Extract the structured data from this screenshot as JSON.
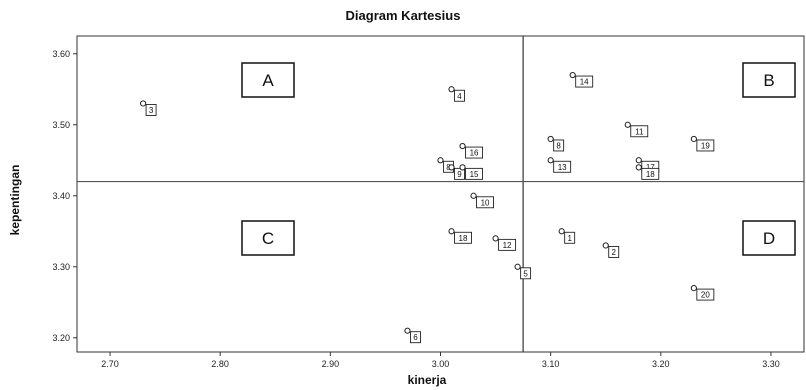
{
  "chart_data": {
    "type": "scatter",
    "title": "Diagram Kartesius",
    "xlabel": "kinerja",
    "ylabel": "kepentingan",
    "xlim": [
      2.67,
      3.33
    ],
    "ylim": [
      3.18,
      3.625
    ],
    "x_ticks": [
      "2.70",
      "2.80",
      "2.90",
      "3.00",
      "3.10",
      "3.20",
      "3.30"
    ],
    "y_ticks": [
      "3.20",
      "3.30",
      "3.40",
      "3.50",
      "3.60"
    ],
    "x_tick_values": [
      2.7,
      2.8,
      2.9,
      3.0,
      3.1,
      3.2,
      3.3
    ],
    "y_tick_values": [
      3.2,
      3.3,
      3.4,
      3.5,
      3.6
    ],
    "reference_lines": {
      "x": 3.075,
      "y": 3.42
    },
    "quadrants": [
      {
        "label": "A",
        "position": "top-left"
      },
      {
        "label": "B",
        "position": "top-right"
      },
      {
        "label": "C",
        "position": "bottom-left"
      },
      {
        "label": "D",
        "position": "bottom-right"
      }
    ],
    "points": [
      {
        "label": "3",
        "x": 2.73,
        "y": 3.53
      },
      {
        "label": "4",
        "x": 3.01,
        "y": 3.55
      },
      {
        "label": "16",
        "x": 3.02,
        "y": 3.47
      },
      {
        "label": "8",
        "x": 3.0,
        "y": 3.45
      },
      {
        "label": "9",
        "x": 3.01,
        "y": 3.44
      },
      {
        "label": "15",
        "x": 3.02,
        "y": 3.44
      },
      {
        "label": "10",
        "x": 3.03,
        "y": 3.4
      },
      {
        "label": "18",
        "x": 3.01,
        "y": 3.35
      },
      {
        "label": "12",
        "x": 3.05,
        "y": 3.34
      },
      {
        "label": "5",
        "x": 3.07,
        "y": 3.3
      },
      {
        "label": "6",
        "x": 2.97,
        "y": 3.21
      },
      {
        "label": "14",
        "x": 3.12,
        "y": 3.57
      },
      {
        "label": "8",
        "x": 3.1,
        "y": 3.48
      },
      {
        "label": "13",
        "x": 3.1,
        "y": 3.45
      },
      {
        "label": "11",
        "x": 3.17,
        "y": 3.5
      },
      {
        "label": "19",
        "x": 3.23,
        "y": 3.48
      },
      {
        "label": "17",
        "x": 3.18,
        "y": 3.45
      },
      {
        "label": "18",
        "x": 3.18,
        "y": 3.44
      },
      {
        "label": "1",
        "x": 3.11,
        "y": 3.35
      },
      {
        "label": "2",
        "x": 3.15,
        "y": 3.33
      },
      {
        "label": "20",
        "x": 3.23,
        "y": 3.27
      }
    ]
  }
}
